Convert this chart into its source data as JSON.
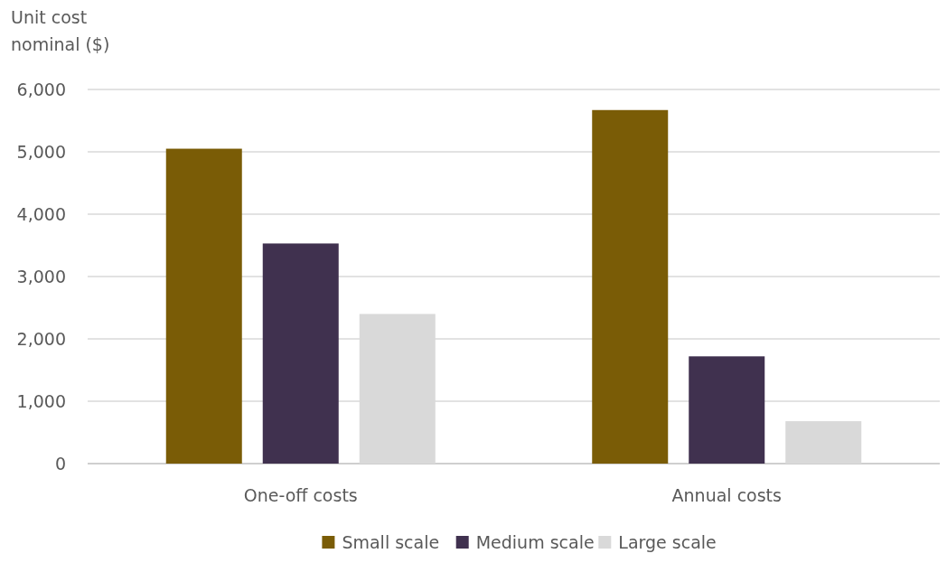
{
  "chart_data": {
    "type": "bar",
    "ylabel": "Unit cost\nnominal ($)",
    "categories": [
      "One-off costs",
      "Annual costs"
    ],
    "series": [
      {
        "name": "Small scale",
        "color": "#7a5c06",
        "values": [
          5050,
          5670
        ]
      },
      {
        "name": "Medium scale",
        "color": "#40314f",
        "values": [
          3530,
          1720
        ]
      },
      {
        "name": "Large scale",
        "color": "#d9d9d9",
        "values": [
          2400,
          680
        ]
      }
    ],
    "ylim": [
      0,
      6000
    ],
    "yticks": [
      {
        "value": 0,
        "label": "0"
      },
      {
        "value": 1000,
        "label": "1,000"
      },
      {
        "value": 2000,
        "label": "2,000"
      },
      {
        "value": 3000,
        "label": "3,000"
      },
      {
        "value": 4000,
        "label": "4,000"
      },
      {
        "value": 5000,
        "label": "5,000"
      },
      {
        "value": 6000,
        "label": "6,000"
      }
    ],
    "grid": "y",
    "legend": "bottom"
  }
}
